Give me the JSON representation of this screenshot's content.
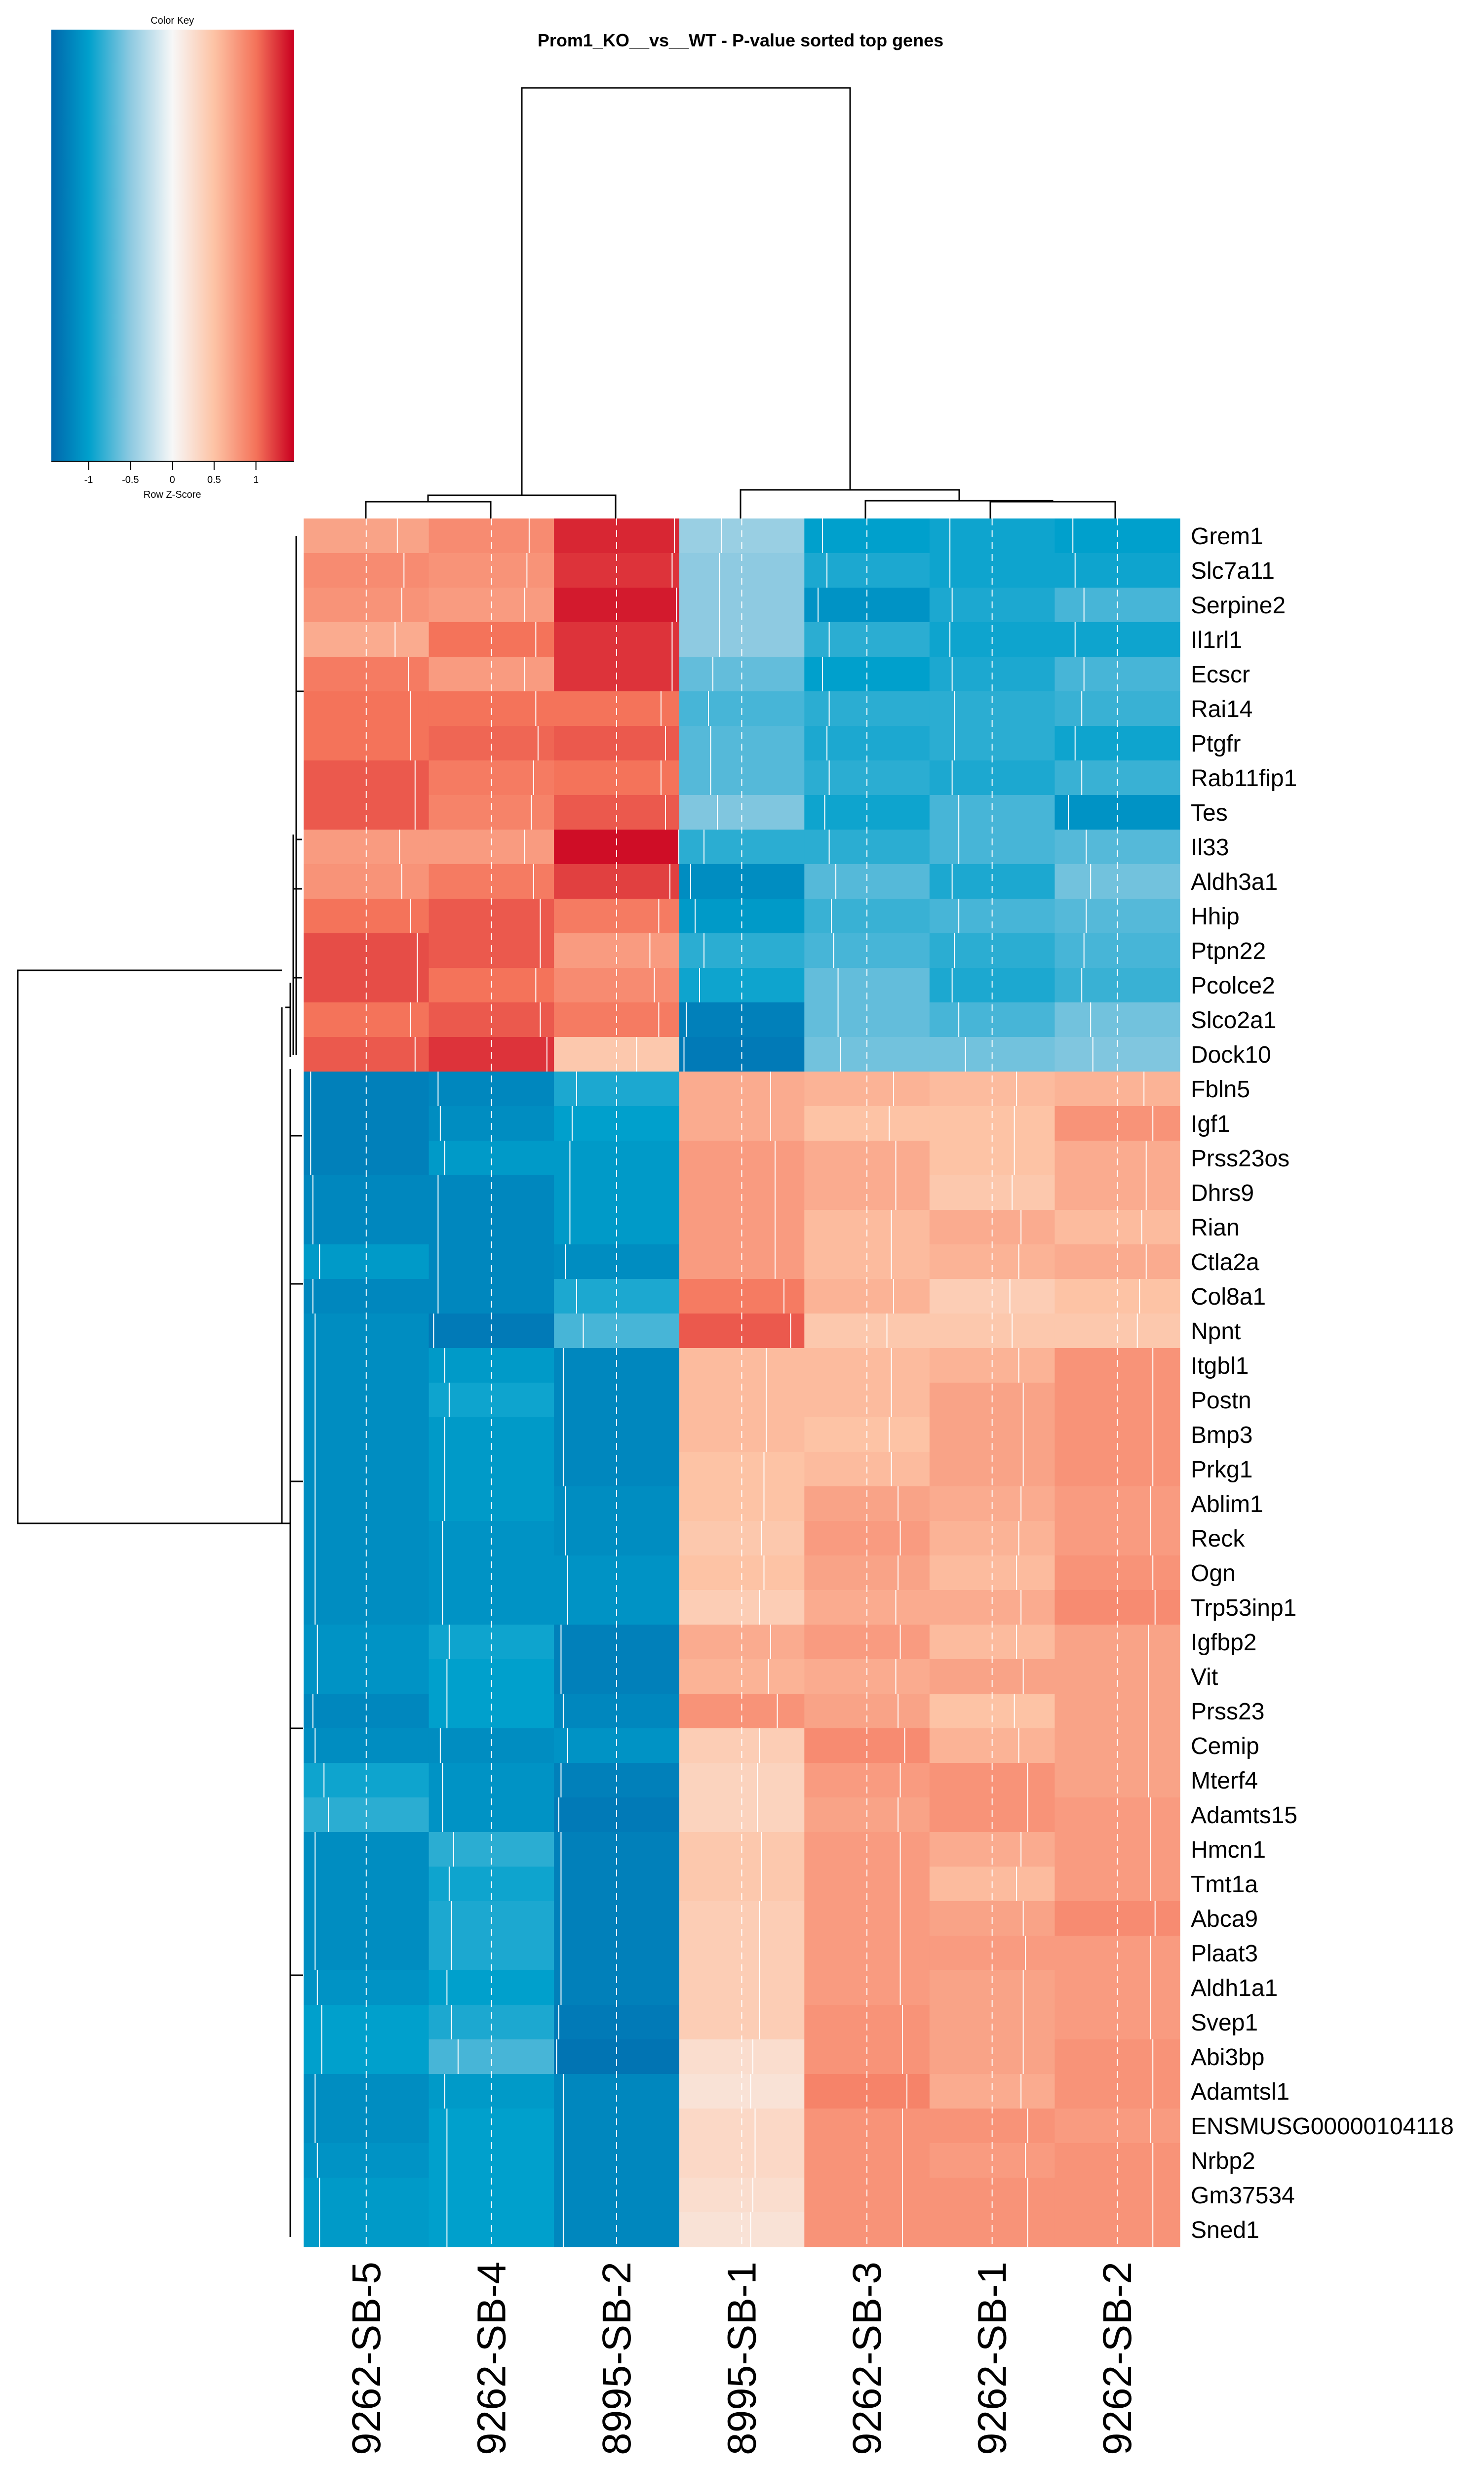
{
  "chart_data": {
    "type": "heatmap",
    "title": "Prom1_KO__vs__WT - P-value sorted top genes",
    "color_key": {
      "title": "Color Key",
      "xlabel": "Row Z-Score",
      "ticks": [
        "-1",
        "-0.5",
        "0",
        "0.5",
        "1"
      ],
      "tick_values": [
        -1,
        -0.5,
        0,
        0.5,
        1
      ],
      "range": [
        -1.45,
        1.45
      ],
      "colors": {
        "low": "#0167ac",
        "mid_low": "#00a0cc",
        "light_blue": "#8ecae1",
        "mid": "#f7f7f7",
        "light_red": "#fdc3a5",
        "mid_high": "#f4735a",
        "high": "#ca0020"
      }
    },
    "columns": [
      "9262-SB-5",
      "9262-SB-4",
      "8995-SB-2",
      "8995-SB-1",
      "9262-SB-3",
      "9262-SB-1",
      "9262-SB-2"
    ],
    "rows": [
      "Grem1",
      "Slc7a11",
      "Serpine2",
      "Il1rl1",
      "Ecscr",
      "Rai14",
      "Ptgfr",
      "Rab11fip1",
      "Tes",
      "Il33",
      "Aldh3a1",
      "Hhip",
      "Ptpn22",
      "Pcolce2",
      "Slco2a1",
      "Dock10",
      "Fbln5",
      "Igf1",
      "Prss23os",
      "Dhrs9",
      "Rian",
      "Ctla2a",
      "Col8a1",
      "Npnt",
      "Itgbl1",
      "Postn",
      "Bmp3",
      "Prkg1",
      "Ablim1",
      "Reck",
      "Ogn",
      "Trp53inp1",
      "Igfbp2",
      "Vit",
      "Prss23",
      "Cemip",
      "Mterf4",
      "Adamts15",
      "Hmcn1",
      "Tmt1a",
      "Abca9",
      "Plaat3",
      "Aldh1a1",
      "Svep1",
      "Abi3bp",
      "Adamtsl1",
      "ENSMUSG00000104118",
      "Nrbp2",
      "Gm37534",
      "Sned1"
    ],
    "values": [
      [
        0.7,
        0.85,
        1.3,
        -0.45,
        -1.0,
        -0.95,
        -1.0
      ],
      [
        0.85,
        0.8,
        1.25,
        -0.5,
        -0.9,
        -0.95,
        -0.95
      ],
      [
        0.8,
        0.75,
        1.35,
        -0.5,
        -1.1,
        -0.9,
        -0.75
      ],
      [
        0.65,
        1.0,
        1.25,
        -0.5,
        -0.85,
        -0.95,
        -0.95
      ],
      [
        0.95,
        0.75,
        1.25,
        -0.65,
        -1.0,
        -0.9,
        -0.75
      ],
      [
        1.0,
        1.0,
        1.0,
        -0.75,
        -0.85,
        -0.85,
        -0.8
      ],
      [
        1.0,
        1.05,
        1.1,
        -0.7,
        -0.9,
        -0.85,
        -0.95
      ],
      [
        1.1,
        0.95,
        1.0,
        -0.7,
        -0.85,
        -0.9,
        -0.8
      ],
      [
        1.1,
        0.9,
        1.1,
        -0.55,
        -0.95,
        -0.75,
        -1.1
      ],
      [
        0.75,
        0.75,
        1.4,
        -0.85,
        -0.85,
        -0.75,
        -0.7
      ],
      [
        0.8,
        0.95,
        1.2,
        -1.15,
        -0.7,
        -0.9,
        -0.6
      ],
      [
        1.0,
        1.1,
        0.95,
        -1.05,
        -0.8,
        -0.75,
        -0.7
      ],
      [
        1.15,
        1.1,
        0.75,
        -0.85,
        -0.75,
        -0.85,
        -0.75
      ],
      [
        1.15,
        1.0,
        0.85,
        -0.95,
        -0.65,
        -0.9,
        -0.8
      ],
      [
        1.0,
        1.1,
        0.95,
        -1.25,
        -0.65,
        -0.75,
        -0.6
      ],
      [
        1.1,
        1.25,
        0.45,
        -1.3,
        -0.6,
        -0.6,
        -0.55
      ],
      [
        -1.25,
        -1.2,
        -0.9,
        0.65,
        0.6,
        0.55,
        0.6
      ],
      [
        -1.25,
        -1.15,
        -1.0,
        0.65,
        0.5,
        0.5,
        0.8
      ],
      [
        -1.25,
        -1.05,
        -1.05,
        0.75,
        0.65,
        0.5,
        0.65
      ],
      [
        -1.2,
        -1.2,
        -1.05,
        0.75,
        0.65,
        0.45,
        0.65
      ],
      [
        -1.2,
        -1.2,
        -1.05,
        0.75,
        0.55,
        0.65,
        0.55
      ],
      [
        -1.05,
        -1.2,
        -1.15,
        0.75,
        0.55,
        0.6,
        0.65
      ],
      [
        -1.2,
        -1.2,
        -0.9,
        0.95,
        0.6,
        0.4,
        0.5
      ],
      [
        -1.15,
        -1.3,
        -0.75,
        1.1,
        0.45,
        0.45,
        0.45
      ],
      [
        -1.15,
        -1.05,
        -1.2,
        0.55,
        0.55,
        0.6,
        0.8
      ],
      [
        -1.15,
        -0.95,
        -1.2,
        0.55,
        0.55,
        0.7,
        0.8
      ],
      [
        -1.15,
        -1.05,
        -1.2,
        0.55,
        0.5,
        0.7,
        0.8
      ],
      [
        -1.15,
        -1.05,
        -1.2,
        0.5,
        0.55,
        0.7,
        0.8
      ],
      [
        -1.15,
        -1.05,
        -1.15,
        0.5,
        0.7,
        0.65,
        0.75
      ],
      [
        -1.15,
        -1.1,
        -1.15,
        0.45,
        0.75,
        0.6,
        0.75
      ],
      [
        -1.15,
        -1.1,
        -1.1,
        0.5,
        0.7,
        0.55,
        0.8
      ],
      [
        -1.15,
        -1.1,
        -1.1,
        0.4,
        0.65,
        0.65,
        0.85
      ],
      [
        -1.1,
        -0.95,
        -1.25,
        0.65,
        0.75,
        0.55,
        0.7
      ],
      [
        -1.1,
        -1.0,
        -1.25,
        0.6,
        0.65,
        0.7,
        0.7
      ],
      [
        -1.2,
        -1.0,
        -1.2,
        0.8,
        0.7,
        0.5,
        0.7
      ],
      [
        -1.15,
        -1.15,
        -1.1,
        0.4,
        0.85,
        0.6,
        0.7
      ],
      [
        -0.95,
        -1.1,
        -1.25,
        0.35,
        0.75,
        0.8,
        0.7
      ],
      [
        -0.85,
        -1.1,
        -1.3,
        0.35,
        0.7,
        0.8,
        0.75
      ],
      [
        -1.15,
        -0.85,
        -1.25,
        0.45,
        0.75,
        0.65,
        0.75
      ],
      [
        -1.15,
        -0.95,
        -1.25,
        0.45,
        0.75,
        0.55,
        0.75
      ],
      [
        -1.15,
        -0.9,
        -1.25,
        0.4,
        0.75,
        0.7,
        0.85
      ],
      [
        -1.15,
        -0.9,
        -1.25,
        0.4,
        0.75,
        0.75,
        0.75
      ],
      [
        -1.1,
        -1.0,
        -1.25,
        0.4,
        0.75,
        0.7,
        0.75
      ],
      [
        -1.0,
        -0.9,
        -1.3,
        0.4,
        0.8,
        0.7,
        0.75
      ],
      [
        -1.0,
        -0.75,
        -1.35,
        0.25,
        0.8,
        0.7,
        0.8
      ],
      [
        -1.15,
        -1.05,
        -1.2,
        0.2,
        0.9,
        0.65,
        0.8
      ],
      [
        -1.15,
        -1.0,
        -1.2,
        0.3,
        0.8,
        0.8,
        0.75
      ],
      [
        -1.1,
        -1.0,
        -1.2,
        0.3,
        0.8,
        0.75,
        0.8
      ],
      [
        -1.05,
        -1.0,
        -1.2,
        0.25,
        0.8,
        0.8,
        0.8
      ],
      [
        -1.05,
        -1.0,
        -1.2,
        0.2,
        0.8,
        0.8,
        0.8
      ]
    ]
  }
}
